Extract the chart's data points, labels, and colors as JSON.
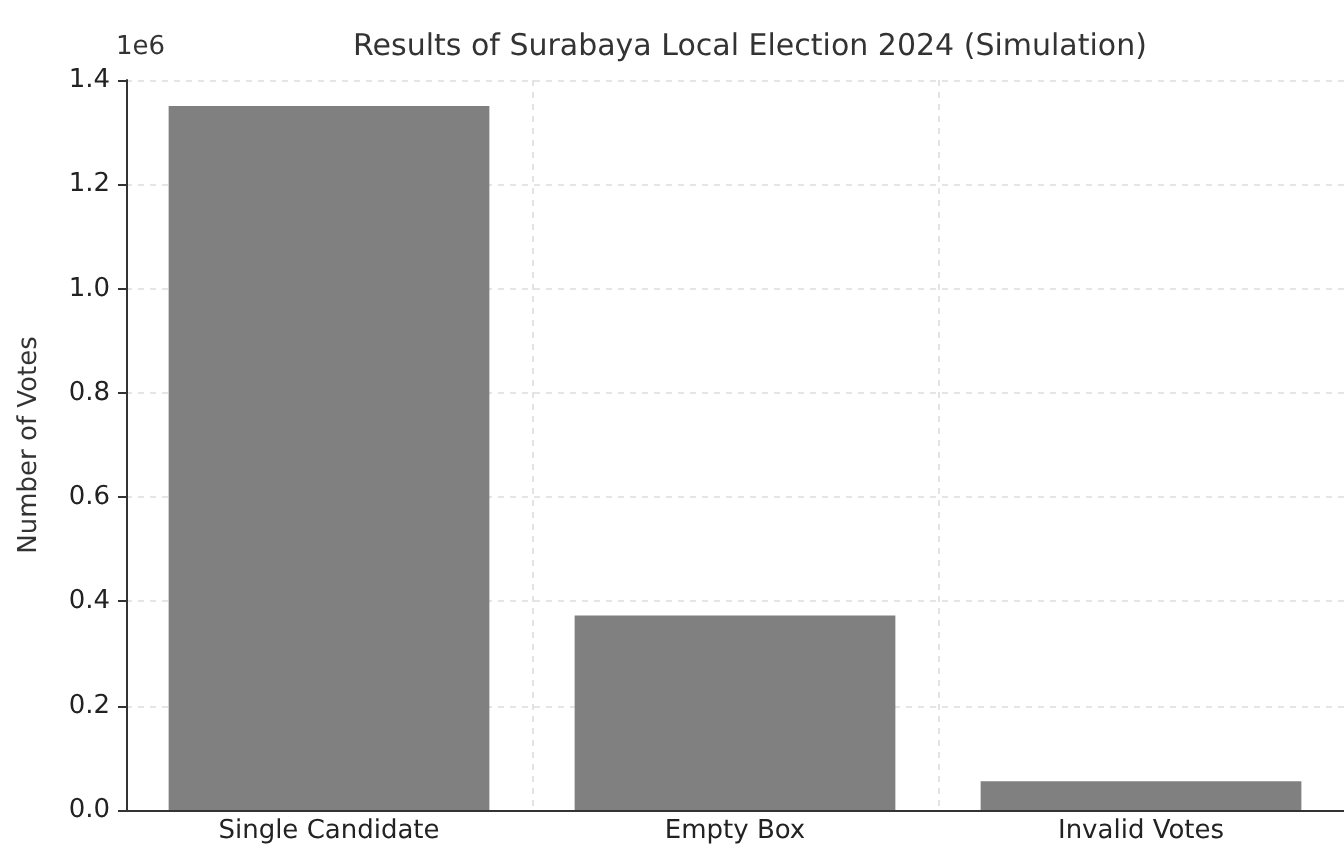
{
  "chart_data": {
    "type": "bar",
    "title": "Results of Surabaya Local Election 2024 (Simulation)",
    "ylabel": "Number of Votes",
    "categories": [
      "Single Candidate",
      "Empty Box",
      "Invalid Votes"
    ],
    "values": [
      1.35,
      0.373,
      0.055
    ],
    "color": "#808080",
    "ylim": [
      0,
      1.4
    ],
    "yticks": [
      {
        "value": 0,
        "label": "0.0"
      },
      0.2,
      0.4,
      0.6,
      0.8,
      {
        "value": 1,
        "label": "1.0"
      },
      1.2,
      1.4
    ],
    "annotations": [
      "1e6"
    ],
    "grid": true
  }
}
